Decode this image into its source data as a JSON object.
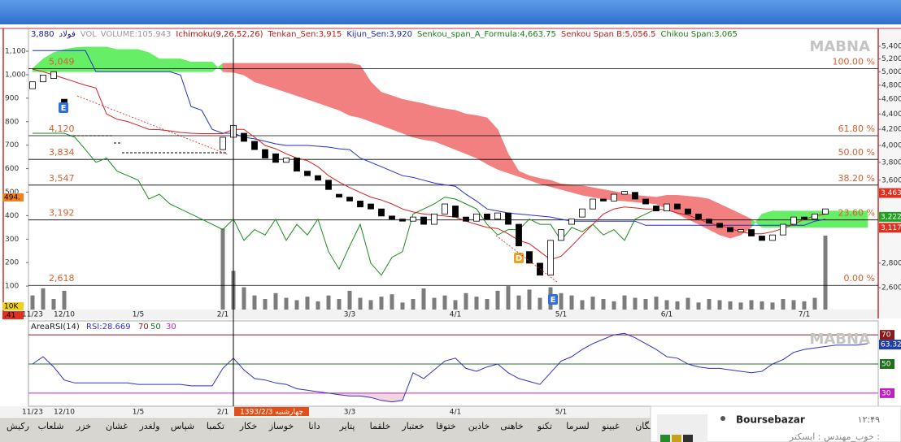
{
  "chart_data": [
    {
      "type": "candlestick",
      "header": [
        {
          "text": "3,880",
          "color": "#1a1a8a"
        },
        {
          "text": "فولاد",
          "color": "#1a1a8a"
        },
        {
          "text": "VOL",
          "color": "#9a9a9a"
        },
        {
          "text": "VOLUME:105.943",
          "color": "#9a9a9a"
        },
        {
          "text": "Ichimoku(9,26,52,26)",
          "color": "#b01010"
        },
        {
          "text": "Tenkan_Sen:3,915",
          "color": "#c01818"
        },
        {
          "text": "Kijun_Sen:3,920",
          "color": "#1a2aa8"
        },
        {
          "text": "Senkou_span_A_Formula:4,663.75",
          "color": "#1a7a1a"
        },
        {
          "text": "Senkou Span B:5,056.5",
          "color": "#c01818"
        },
        {
          "text": "Chikou Span:3,065",
          "color": "#1a7a1a"
        }
      ],
      "watermark": "MABNA",
      "categories": [
        "11/23",
        null,
        null,
        "12/10",
        null,
        null,
        null,
        null,
        null,
        null,
        "1/5",
        null,
        null,
        null,
        null,
        null,
        null,
        null,
        "2/1",
        null,
        null,
        null,
        null,
        null,
        null,
        null,
        null,
        null,
        null,
        null,
        "3/3",
        null,
        null,
        null,
        null,
        null,
        null,
        null,
        null,
        null,
        "4/1",
        null,
        null,
        null,
        null,
        null,
        null,
        null,
        null,
        null,
        "5/1",
        null,
        null,
        null,
        null,
        null,
        null,
        null,
        null,
        null,
        "6/1",
        null,
        null,
        null,
        null,
        null,
        null,
        null,
        null,
        null,
        null,
        null,
        null,
        "7/1",
        null,
        null,
        null,
        null,
        null,
        null
      ],
      "open": [
        4750,
        4850,
        4900,
        4600,
        null,
        null,
        null,
        null,
        null,
        null,
        null,
        null,
        null,
        null,
        null,
        null,
        null,
        null,
        3950,
        4100,
        4150,
        4050,
        3950,
        3900,
        3800,
        3850,
        3700,
        3650,
        3600,
        3450,
        3420,
        3380,
        3350,
        3300,
        3230,
        3200,
        3180,
        3220,
        3150,
        3250,
        3330,
        3220,
        3180,
        3250,
        3200,
        3260,
        3150,
        2900,
        2800,
        2700,
        3000,
        3150,
        3220,
        3300,
        3400,
        3380,
        3450,
        3470,
        3400,
        3330,
        3280,
        3350,
        3300,
        3250,
        3200,
        3160,
        3120,
        3080,
        3100,
        3040,
        3000,
        3050,
        3150,
        3220,
        3200,
        3250,
        null,
        null,
        null,
        null
      ],
      "close": [
        4850,
        4950,
        5000,
        4450,
        null,
        null,
        null,
        null,
        null,
        null,
        null,
        null,
        null,
        null,
        null,
        null,
        null,
        null,
        4100,
        4250,
        4050,
        3950,
        3850,
        3800,
        3850,
        3700,
        3650,
        3600,
        3500,
        3420,
        3380,
        3320,
        3300,
        3230,
        3200,
        3180,
        3220,
        3150,
        3250,
        3350,
        3220,
        3180,
        3250,
        3200,
        3260,
        3150,
        2950,
        2800,
        2700,
        3000,
        3100,
        3200,
        3300,
        3400,
        3380,
        3450,
        3480,
        3400,
        3350,
        3280,
        3350,
        3300,
        3250,
        3200,
        3160,
        3120,
        3080,
        3100,
        3040,
        3000,
        3050,
        3150,
        3220,
        3200,
        3250,
        3300,
        null,
        null,
        null,
        null
      ],
      "up_color": "#ffffff",
      "down_color": "#000000",
      "candle_stroke": "#000000",
      "tenkan": {
        "color": "#d42020",
        "values": [
          5040,
          5000,
          4950,
          4900,
          4850,
          4800,
          4760,
          4400,
          4330,
          4300,
          4250,
          4200,
          4195,
          4180,
          4160,
          4150,
          4145,
          4145,
          4145,
          4200,
          4200,
          4100,
          4000,
          3960,
          3900,
          3850,
          3820,
          3750,
          3650,
          3580,
          3520,
          3470,
          3420,
          3390,
          3350,
          3300,
          3270,
          3250,
          3240,
          3230,
          3220,
          3180,
          3150,
          3120,
          3110,
          3060,
          3000,
          2970,
          2900,
          2830,
          2860,
          2950,
          3050,
          3150,
          3250,
          3300,
          3320,
          3310,
          3300,
          3300,
          3290,
          3260,
          3240,
          3200,
          3160,
          3140,
          3110,
          3080,
          3060,
          3060,
          3080,
          3110,
          3150,
          3200,
          3230,
          3250,
          null,
          null,
          null,
          null
        ]
      },
      "kijun": {
        "color": "#2030c8",
        "values": [
          5330,
          5330,
          5330,
          5330,
          5330,
          5330,
          5000,
          5000,
          5000,
          5000,
          5000,
          5000,
          5000,
          5000,
          4950,
          4500,
          4450,
          4200,
          4150,
          4150,
          4100,
          4080,
          4050,
          4020,
          4000,
          4000,
          4000,
          3990,
          3980,
          3960,
          3950,
          3850,
          3800,
          3750,
          3700,
          3650,
          3630,
          3600,
          3570,
          3550,
          3535,
          3450,
          3380,
          3300,
          3280,
          3260,
          3250,
          3240,
          3230,
          3220,
          3200,
          3180,
          3180,
          3180,
          3180,
          3180,
          3180,
          3180,
          3140,
          3140,
          3140,
          3140,
          3140,
          3140,
          3140,
          3140,
          3140,
          3140,
          3140,
          3140,
          3140,
          3140,
          3140,
          3140,
          3180,
          3200,
          null,
          null,
          null,
          null
        ]
      },
      "chikou": {
        "color": "#1a8a1a",
        "values": [
          4150,
          4150,
          4150,
          4150,
          4100,
          3950,
          3800,
          3850,
          3700,
          3650,
          3600,
          3400,
          3450,
          3350,
          3300,
          3250,
          3200,
          3150,
          3100,
          3200,
          3000,
          3100,
          3050,
          3200,
          3000,
          3150,
          3050,
          3200,
          2900,
          2750,
          2950,
          3150,
          2800,
          2700,
          2850,
          2900,
          3250,
          3300,
          3350,
          3420,
          3400,
          3350,
          3300,
          3150,
          3050,
          3100,
          3100,
          3200,
          3150,
          3150,
          3000,
          3120,
          3080,
          3150,
          3050,
          3100,
          3000,
          3200,
          3250,
          3300,
          null,
          null,
          null,
          null,
          null,
          null,
          null,
          null,
          null,
          null,
          null,
          null,
          null,
          null,
          null,
          null,
          null,
          null,
          null,
          null
        ]
      },
      "cloud": {
        "bull_color": "#66ee66",
        "bear_color": "#f28080",
        "span_a": [
          5050,
          5200,
          5300,
          5350,
          5380,
          5390,
          5390,
          5390,
          5350,
          5350,
          5350,
          5300,
          5200,
          5200,
          5200,
          5150,
          5150,
          5150,
          5000,
          4990,
          4950,
          4850,
          4800,
          4750,
          4700,
          4650,
          4600,
          4550,
          4500,
          4450,
          4380,
          4350,
          4300,
          4250,
          4200,
          4150,
          4100,
          4070,
          4050,
          4000,
          3950,
          3900,
          3850,
          3780,
          3720,
          3680,
          3640,
          3600,
          3560,
          3530,
          3500,
          3470,
          3440,
          3420,
          3400,
          3390,
          3380,
          3370,
          3360,
          3350,
          3300,
          3250,
          3200,
          3150,
          3100,
          3050,
          3020,
          3050,
          3120,
          3250,
          3280,
          3280,
          3280,
          3280,
          3280,
          3280,
          3280,
          3280,
          3280,
          3280
        ],
        "span_b": [
          5000,
          5000,
          5000,
          5000,
          5000,
          5000,
          5000,
          5000,
          5000,
          5000,
          5000,
          5000,
          5000,
          5000,
          5000,
          5000,
          5000,
          5000,
          5130,
          5130,
          5130,
          5130,
          5130,
          5130,
          5130,
          5130,
          5130,
          5130,
          5130,
          5130,
          5130,
          5100,
          4850,
          4700,
          4650,
          4600,
          4570,
          4540,
          4500,
          4470,
          4450,
          4400,
          4380,
          4350,
          4200,
          3900,
          3700,
          3650,
          3620,
          3600,
          3560,
          3550,
          3540,
          3520,
          3500,
          3480,
          3460,
          3440,
          3430,
          3420,
          3440,
          3440,
          3430,
          3420,
          3400,
          3350,
          3300,
          3250,
          3200,
          3120,
          3120,
          3120,
          3120,
          3120,
          3120,
          3120,
          3120,
          3120,
          3120,
          3120
        ]
      },
      "volume": {
        "axis": "y2",
        "color": "#7c7c7c",
        "values": [
          60,
          90,
          45,
          80,
          null,
          null,
          null,
          null,
          null,
          null,
          null,
          null,
          null,
          null,
          null,
          null,
          null,
          null,
          345,
          165,
          95,
          60,
          45,
          70,
          50,
          40,
          55,
          35,
          60,
          45,
          80,
          50,
          40,
          55,
          65,
          30,
          45,
          90,
          50,
          60,
          40,
          70,
          55,
          45,
          80,
          100,
          60,
          85,
          50,
          95,
          70,
          60,
          40,
          55,
          45,
          35,
          60,
          50,
          45,
          55,
          40,
          35,
          50,
          30,
          45,
          40,
          35,
          30,
          40,
          35,
          30,
          45,
          40,
          35,
          50,
          315,
          null,
          null,
          null,
          null
        ]
      },
      "log_scale": true,
      "ylim": [
        2433,
        5701
      ],
      "yticks": [
        {
          "value": 2600,
          "label": "2,600"
        },
        {
          "value": 2800,
          "label": "2,800"
        },
        {
          "value": 3600,
          "label": "3,600"
        },
        {
          "value": 3800,
          "label": "3,800"
        },
        {
          "value": 4000,
          "label": "4,000"
        },
        {
          "value": 4200,
          "label": "4,200"
        },
        {
          "value": 4400,
          "label": "4,400"
        },
        {
          "value": 4600,
          "label": "4,600"
        },
        {
          "value": 4800,
          "label": "4,800"
        },
        {
          "value": 5000,
          "label": "5,000"
        },
        {
          "value": 5200,
          "label": "5,200"
        },
        {
          "value": 5400,
          "label": "5,400"
        }
      ],
      "y2lim": [
        0,
        1197
      ],
      "y2ticks": [
        100,
        200,
        300,
        400,
        500,
        600,
        700,
        800,
        900,
        {
          "value": 1000,
          "label": "1,000"
        },
        {
          "value": 1100,
          "label": "1,100"
        }
      ],
      "fib_color": "#d2602e",
      "fib_levels": [
        {
          "value": 5049,
          "label": "5,049",
          "level": "100.00 %"
        },
        {
          "value": 4120,
          "label": "4,120",
          "level": "61.80 %"
        },
        {
          "value": 3834,
          "label": "3,834",
          "level": "50.00 %"
        },
        {
          "value": 3547,
          "label": "3,547",
          "level": "38.20 %"
        },
        {
          "value": 3192,
          "label": "3,192",
          "level": "23.60 %"
        },
        {
          "value": 2618,
          "label": "2,618",
          "level": "0.00 %"
        }
      ],
      "price_tags": [
        {
          "value": 3463,
          "label": "3,463",
          "color": "#e03020"
        },
        {
          "value": 3222,
          "label": "3,222",
          "color": "#20a020"
        },
        {
          "value": 3117,
          "label": "3,117",
          "color": "#e03020"
        }
      ],
      "left_tags": [
        {
          "label": "494.",
          "color": "#f08020"
        },
        {
          "label": "10K",
          "color": "#f0d020"
        },
        {
          "label": ".41",
          "color": "#e03020"
        }
      ],
      "markers": [
        {
          "text": "E",
          "color": "#2f6fdc"
        },
        {
          "text": "D",
          "color": "#f0a020"
        },
        {
          "text": "E",
          "color": "#2f6fdc"
        }
      ]
    },
    {
      "type": "line",
      "title": "AreaRSI(14)",
      "reading": "RSI:28.669",
      "watermark": "MABNA",
      "categories": [
        "11/23",
        null,
        null,
        "12/10",
        null,
        null,
        null,
        null,
        null,
        null,
        "1/5",
        null,
        null,
        null,
        null,
        null,
        null,
        null,
        "2/1",
        null,
        null,
        null,
        null,
        null,
        null,
        null,
        null,
        null,
        null,
        null,
        "3/3",
        null,
        null,
        null,
        null,
        null,
        null,
        null,
        null,
        null,
        "4/1",
        null,
        null,
        null,
        null,
        null,
        null,
        null,
        null,
        null,
        "5/1",
        null,
        null,
        null,
        null,
        null,
        null,
        null,
        null,
        null,
        "6/1",
        null,
        null,
        null,
        null,
        null,
        null,
        null,
        null,
        null,
        null,
        null,
        null,
        "7/1",
        null,
        null,
        null,
        null,
        null,
        null
      ],
      "values": [
        50,
        55,
        48,
        39,
        37,
        37,
        37,
        37,
        37,
        37,
        36,
        36,
        36,
        36,
        36,
        35,
        35,
        35,
        47,
        54,
        46,
        40,
        39,
        37,
        36,
        33,
        32,
        31,
        30,
        29,
        28,
        28,
        27,
        25,
        24,
        25,
        44,
        40,
        46,
        52,
        54,
        47,
        45,
        48,
        50,
        44,
        40,
        38,
        36,
        44,
        52,
        55,
        60,
        64,
        67,
        70,
        71,
        68,
        64,
        60,
        55,
        54,
        50,
        48,
        47,
        47,
        46,
        45,
        44,
        45,
        50,
        53,
        58,
        60,
        61,
        62,
        63,
        63,
        63,
        64
      ],
      "color": "#3030c0",
      "area_color": "#f0d4de",
      "ylim": [
        21,
        79
      ],
      "yticks": [
        30,
        50,
        70
      ],
      "tick_colors": [
        "#c020c0",
        "#207020",
        "#8b1a1a"
      ],
      "current": 63.32,
      "current_color": "#2040a0",
      "date_tag": "1393/2/3 چهارشنبه"
    }
  ],
  "tabs": [
    "رکیش",
    "شلعاب",
    "خزر",
    "غشان",
    "ولغدر",
    "شپاس",
    "تکمبا",
    "خکار",
    "خوساز",
    "دانا",
    "پتایر",
    "خلقما",
    "خعتبار",
    "ختوقا",
    "خاذین",
    "خاهنی",
    "تکنو",
    "لسرما",
    "غبینو",
    "نگان"
  ],
  "notification": {
    "sender": "Boursebazar",
    "time": "۱۲:۴۹",
    "text": "خوب_مهندس : ایسکتر :"
  }
}
